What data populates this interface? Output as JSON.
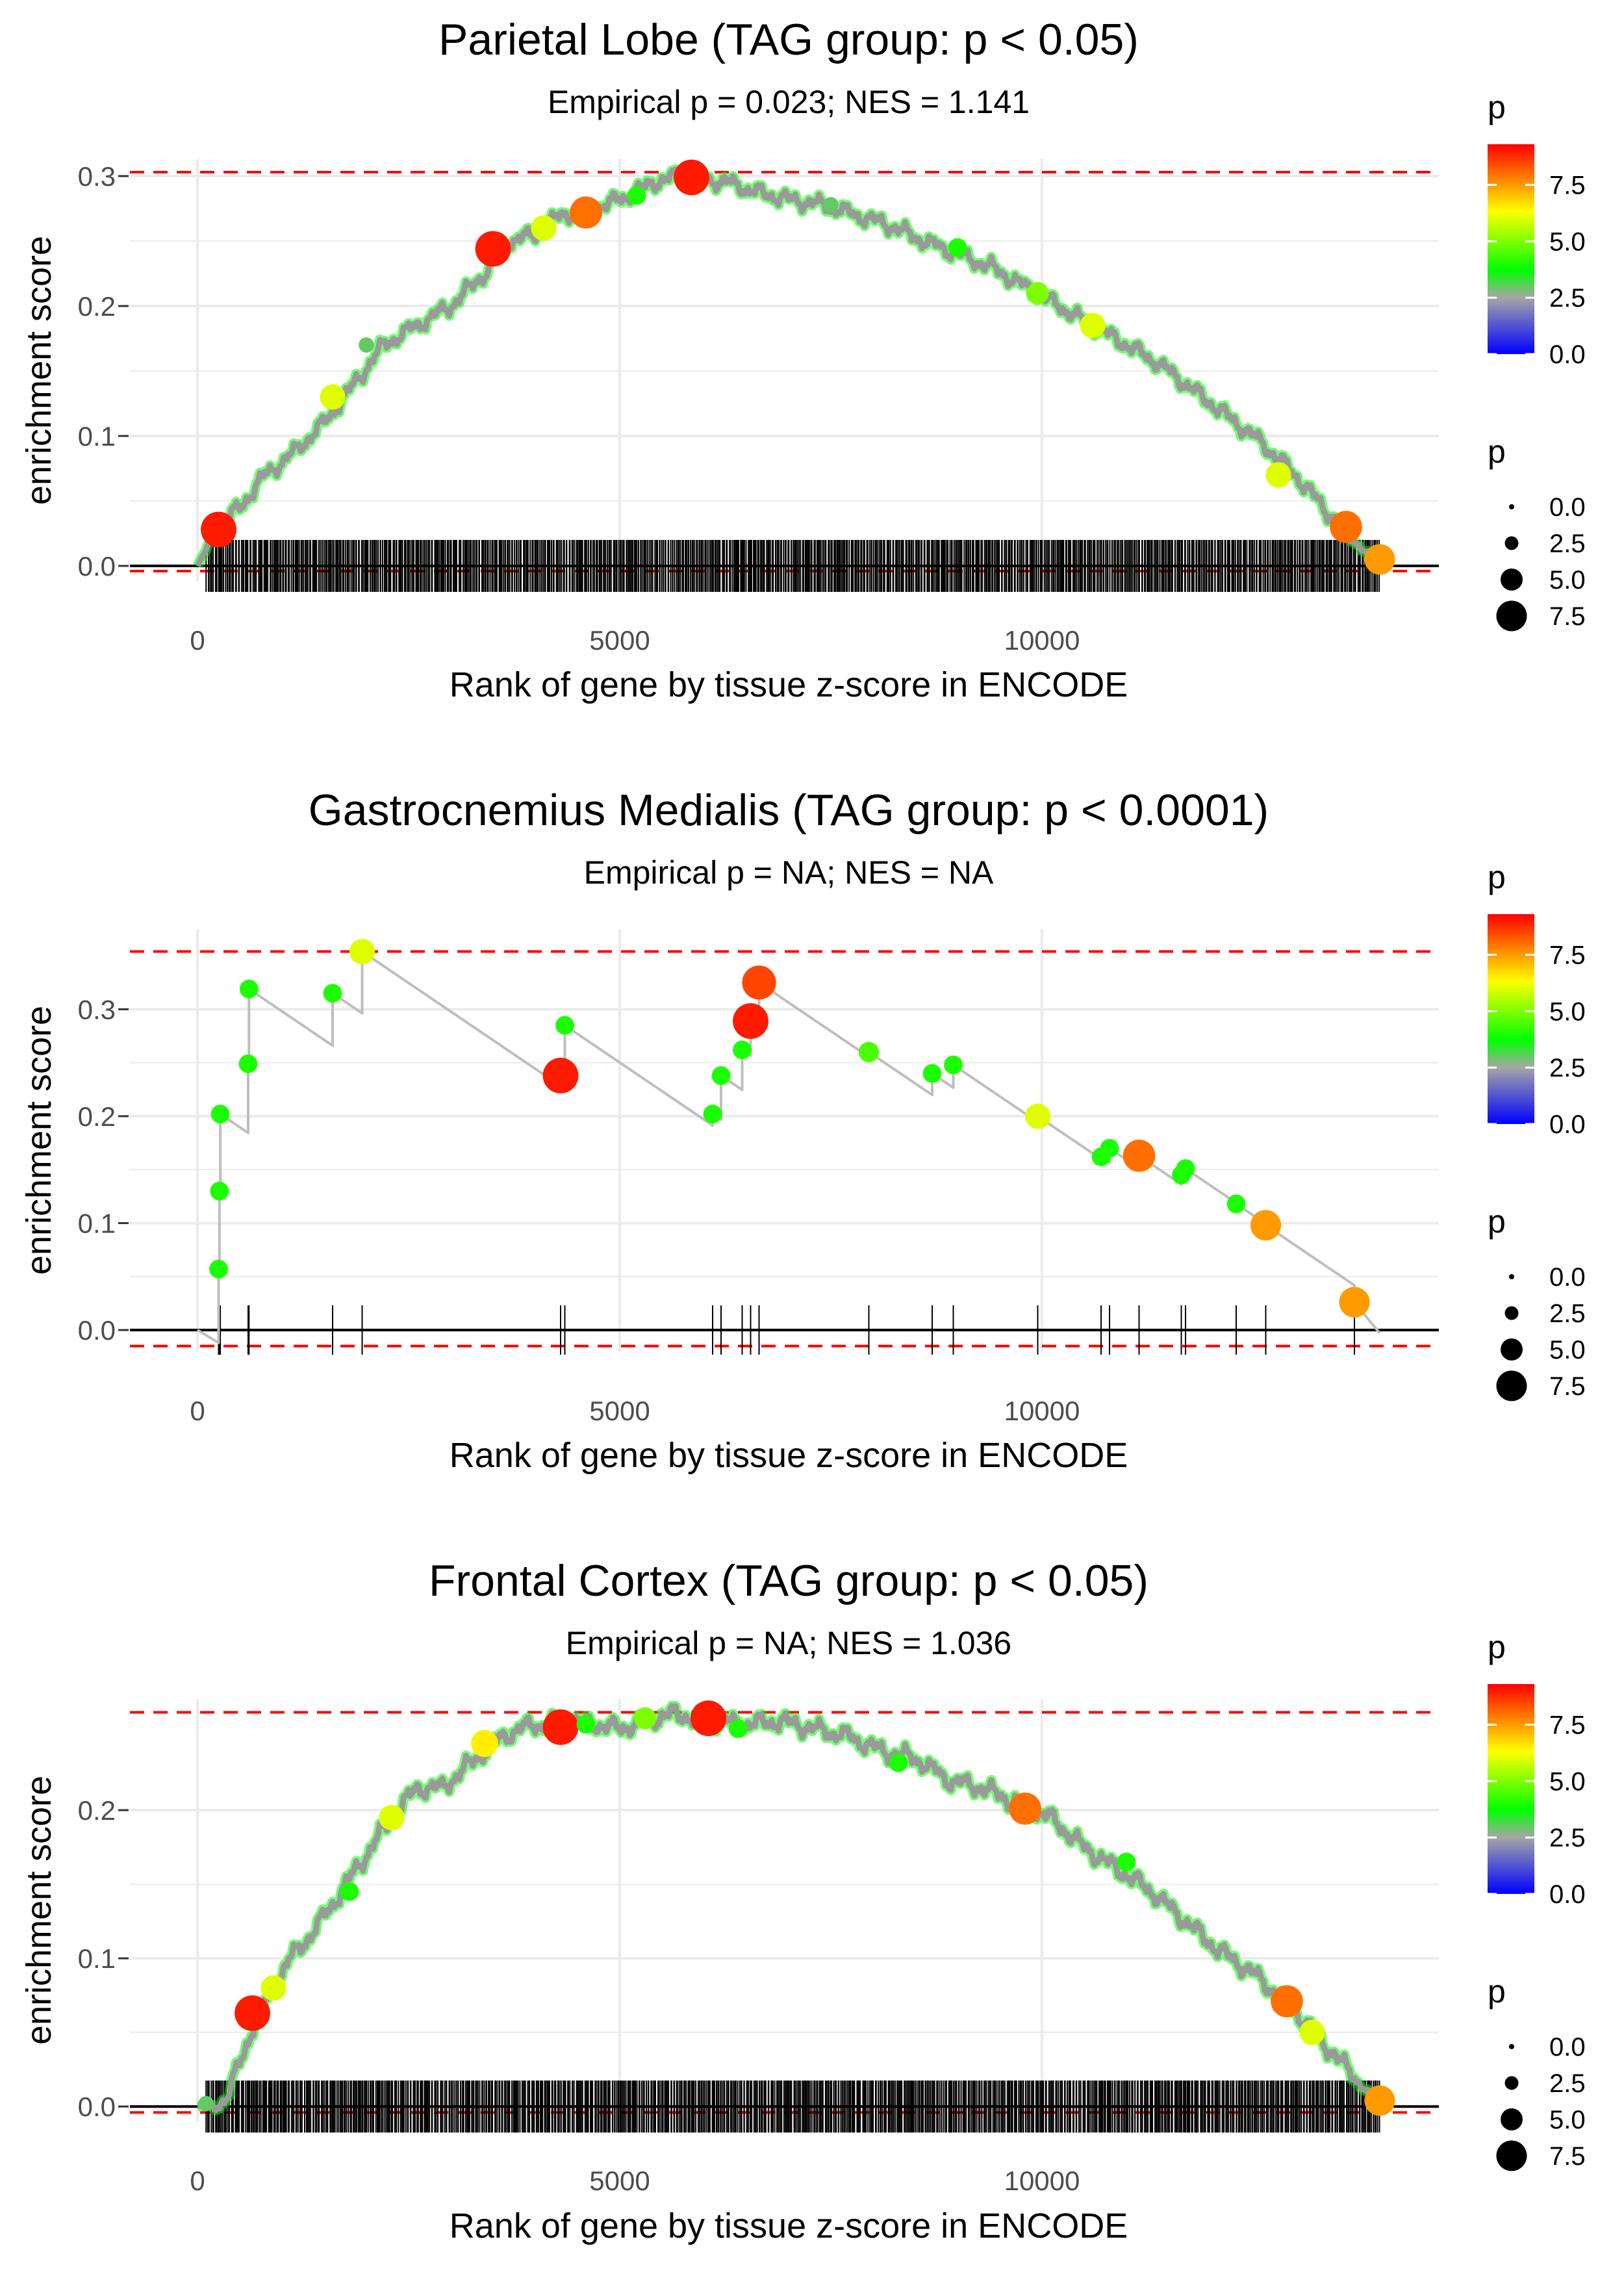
{
  "chart_data": [
    {
      "type": "line",
      "title": "Parietal Lobe (TAG group: p < 0.05)",
      "subtitle": "Empirical p = 0.023; NES = 1.141",
      "xlabel": "Rank of gene by tissue z-score in ENCODE",
      "ylabel": "enrichment score",
      "xlim": [
        -800,
        14700
      ],
      "ylim": [
        -0.012,
        0.313
      ],
      "xticks": [
        0,
        5000,
        10000
      ],
      "xtick_labels": [
        "0",
        "5000",
        "10000"
      ],
      "yticks": [
        0.0,
        0.1,
        0.2,
        0.3
      ],
      "ytick_labels": [
        "0.0",
        "0.1",
        "0.2",
        "0.3"
      ],
      "max_es": 0.303,
      "min_es": -0.004,
      "curve_style": "dense",
      "n_hits": 820,
      "x_end": 14000,
      "rank_range": [
        100,
        14000
      ],
      "curve": {
        "x": [
          0,
          250,
          500,
          800,
          1100,
          1500,
          1800,
          2200,
          2600,
          3000,
          3400,
          3700,
          4000,
          4300,
          4500,
          4800,
          5100,
          5400,
          5700,
          6000,
          6300,
          6600,
          7000,
          7400,
          7800,
          8200,
          8600,
          9000,
          9400,
          9800,
          10200,
          10600,
          11000,
          11400,
          11800,
          12200,
          12600,
          13000,
          13400,
          13700,
          14000
        ],
        "y": [
          0.0,
          0.03,
          0.045,
          0.07,
          0.085,
          0.11,
          0.135,
          0.17,
          0.185,
          0.2,
          0.225,
          0.25,
          0.255,
          0.27,
          0.272,
          0.277,
          0.285,
          0.295,
          0.3,
          0.297,
          0.295,
          0.288,
          0.282,
          0.278,
          0.27,
          0.262,
          0.25,
          0.24,
          0.23,
          0.215,
          0.2,
          0.185,
          0.17,
          0.155,
          0.135,
          0.115,
          0.095,
          0.07,
          0.04,
          0.02,
          0.0
        ]
      },
      "points": [
        {
          "x": 250,
          "y": 0.028,
          "p": 9.0
        },
        {
          "x": 1600,
          "y": 0.13,
          "p": 6.0
        },
        {
          "x": 2000,
          "y": 0.17,
          "p": 3.0
        },
        {
          "x": 3500,
          "y": 0.244,
          "p": 9.0
        },
        {
          "x": 4100,
          "y": 0.26,
          "p": 6.0
        },
        {
          "x": 4600,
          "y": 0.272,
          "p": 8.0
        },
        {
          "x": 5200,
          "y": 0.285,
          "p": 4.0
        },
        {
          "x": 5850,
          "y": 0.299,
          "p": 9.0
        },
        {
          "x": 7500,
          "y": 0.278,
          "p": 3.0
        },
        {
          "x": 9000,
          "y": 0.245,
          "p": 4.0
        },
        {
          "x": 9950,
          "y": 0.21,
          "p": 5.0
        },
        {
          "x": 10600,
          "y": 0.185,
          "p": 6.0
        },
        {
          "x": 12800,
          "y": 0.07,
          "p": 6.0
        },
        {
          "x": 13600,
          "y": 0.03,
          "p": 8.0
        },
        {
          "x": 14000,
          "y": 0.005,
          "p": 7.5
        }
      ]
    },
    {
      "type": "line",
      "title": "Gastrocnemius Medialis (TAG group: p < 0.0001)",
      "subtitle": "Empirical p = NA; NES = NA",
      "xlabel": "Rank of gene by tissue z-score in ENCODE",
      "ylabel": "enrichment score",
      "xlim": [
        -800,
        14700
      ],
      "ylim": [
        -0.02,
        0.375
      ],
      "xticks": [
        0,
        5000,
        10000
      ],
      "xtick_labels": [
        "0",
        "5000",
        "10000"
      ],
      "yticks": [
        0.0,
        0.1,
        0.2,
        0.3
      ],
      "ytick_labels": [
        "0.0",
        "0.1",
        "0.2",
        "0.3"
      ],
      "max_es": 0.354,
      "min_es": -0.015,
      "curve_style": "sawtooth",
      "x_end": 14000,
      "hits": [
        {
          "x": 250,
          "p": 4.0
        },
        {
          "x": 260,
          "p": 4.0
        },
        {
          "x": 270,
          "p": 4.0
        },
        {
          "x": 600,
          "p": 4.0
        },
        {
          "x": 610,
          "p": 4.0
        },
        {
          "x": 1600,
          "p": 4.0
        },
        {
          "x": 1950,
          "p": 6.0
        },
        {
          "x": 4300,
          "p": 9.0
        },
        {
          "x": 4350,
          "p": 4.0
        },
        {
          "x": 6100,
          "p": 4.0
        },
        {
          "x": 6200,
          "p": 4.0
        },
        {
          "x": 6450,
          "p": 4.0
        },
        {
          "x": 6550,
          "p": 9.0
        },
        {
          "x": 6650,
          "p": 8.5
        },
        {
          "x": 7950,
          "p": 4.5
        },
        {
          "x": 8700,
          "p": 4.0
        },
        {
          "x": 8950,
          "p": 4.0
        },
        {
          "x": 9950,
          "p": 6.0
        },
        {
          "x": 10700,
          "p": 4.0
        },
        {
          "x": 10800,
          "p": 4.0
        },
        {
          "x": 11150,
          "p": 8.0
        },
        {
          "x": 11650,
          "p": 4.0
        },
        {
          "x": 11700,
          "p": 4.0
        },
        {
          "x": 12300,
          "p": 4.0
        },
        {
          "x": 12650,
          "p": 7.5
        },
        {
          "x": 13700,
          "p": 7.5
        }
      ],
      "points": [
        {
          "x": 250,
          "y": 0.057,
          "p": 4.0
        },
        {
          "x": 260,
          "y": 0.13,
          "p": 4.0
        },
        {
          "x": 270,
          "y": 0.202,
          "p": 4.0
        },
        {
          "x": 600,
          "y": 0.249,
          "p": 4.0
        },
        {
          "x": 610,
          "y": 0.319,
          "p": 4.0
        },
        {
          "x": 1600,
          "y": 0.315,
          "p": 4.0
        },
        {
          "x": 1950,
          "y": 0.354,
          "p": 6.0
        },
        {
          "x": 4300,
          "y": 0.238,
          "p": 9.0
        },
        {
          "x": 4350,
          "y": 0.285,
          "p": 4.0
        },
        {
          "x": 6100,
          "y": 0.202,
          "p": 4.0
        },
        {
          "x": 6200,
          "y": 0.238,
          "p": 4.0
        },
        {
          "x": 6450,
          "y": 0.262,
          "p": 4.0
        },
        {
          "x": 6550,
          "y": 0.289,
          "p": 9.0
        },
        {
          "x": 6650,
          "y": 0.325,
          "p": 8.5
        },
        {
          "x": 7950,
          "y": 0.26,
          "p": 4.5
        },
        {
          "x": 8700,
          "y": 0.24,
          "p": 4.0
        },
        {
          "x": 8950,
          "y": 0.248,
          "p": 4.0
        },
        {
          "x": 9950,
          "y": 0.2,
          "p": 6.0
        },
        {
          "x": 10700,
          "y": 0.162,
          "p": 4.0
        },
        {
          "x": 10800,
          "y": 0.17,
          "p": 4.0
        },
        {
          "x": 11150,
          "y": 0.163,
          "p": 8.0
        },
        {
          "x": 11650,
          "y": 0.145,
          "p": 4.0
        },
        {
          "x": 11700,
          "y": 0.151,
          "p": 4.0
        },
        {
          "x": 12300,
          "y": 0.118,
          "p": 4.0
        },
        {
          "x": 12650,
          "y": 0.098,
          "p": 7.5
        },
        {
          "x": 13700,
          "y": 0.026,
          "p": 7.5
        }
      ]
    },
    {
      "type": "line",
      "title": "Frontal Cortex (TAG group: p < 0.05)",
      "subtitle": "Empirical p = NA; NES = 1.036",
      "xlabel": "Rank of gene by tissue z-score in ENCODE",
      "ylabel": "enrichment score",
      "xlim": [
        -800,
        14700
      ],
      "ylim": [
        -0.01,
        0.275
      ],
      "xticks": [
        0,
        5000,
        10000
      ],
      "xtick_labels": [
        "0",
        "5000",
        "10000"
      ],
      "yticks": [
        0.0,
        0.1,
        0.2
      ],
      "ytick_labels": [
        "0.0",
        "0.1",
        "0.2"
      ],
      "max_es": 0.266,
      "min_es": -0.004,
      "curve_style": "dense",
      "n_hits": 820,
      "x_end": 14000,
      "rank_range": [
        100,
        14000
      ],
      "curve": {
        "x": [
          0,
          200,
          350,
          500,
          700,
          900,
          1100,
          1400,
          1700,
          2000,
          2300,
          2600,
          2900,
          3200,
          3500,
          3800,
          4100,
          4400,
          4700,
          5000,
          5300,
          5600,
          5900,
          6200,
          6500,
          6900,
          7300,
          7700,
          8100,
          8500,
          8900,
          9300,
          9700,
          10100,
          10500,
          10900,
          11300,
          11700,
          12100,
          12500,
          12900,
          13300,
          13700,
          14000
        ],
        "y": [
          0.0,
          0.0,
          0.005,
          0.03,
          0.06,
          0.08,
          0.1,
          0.12,
          0.145,
          0.17,
          0.195,
          0.215,
          0.215,
          0.23,
          0.245,
          0.255,
          0.258,
          0.26,
          0.258,
          0.255,
          0.26,
          0.265,
          0.262,
          0.26,
          0.258,
          0.26,
          0.255,
          0.25,
          0.24,
          0.235,
          0.22,
          0.215,
          0.205,
          0.195,
          0.175,
          0.16,
          0.145,
          0.125,
          0.105,
          0.09,
          0.07,
          0.045,
          0.02,
          0.0
        ]
      },
      "points": [
        {
          "x": 100,
          "y": 0.002,
          "p": 3.0
        },
        {
          "x": 650,
          "y": 0.063,
          "p": 9.0
        },
        {
          "x": 900,
          "y": 0.08,
          "p": 6.0
        },
        {
          "x": 1800,
          "y": 0.145,
          "p": 4.0
        },
        {
          "x": 2300,
          "y": 0.195,
          "p": 6.0
        },
        {
          "x": 3400,
          "y": 0.245,
          "p": 6.5
        },
        {
          "x": 4300,
          "y": 0.256,
          "p": 9.0
        },
        {
          "x": 4600,
          "y": 0.258,
          "p": 4.0
        },
        {
          "x": 5300,
          "y": 0.262,
          "p": 5.0
        },
        {
          "x": 6050,
          "y": 0.262,
          "p": 9.0
        },
        {
          "x": 6400,
          "y": 0.255,
          "p": 4.0
        },
        {
          "x": 8300,
          "y": 0.232,
          "p": 4.0
        },
        {
          "x": 9800,
          "y": 0.201,
          "p": 8.0
        },
        {
          "x": 11000,
          "y": 0.165,
          "p": 4.0
        },
        {
          "x": 12900,
          "y": 0.071,
          "p": 8.0
        },
        {
          "x": 13200,
          "y": 0.05,
          "p": 6.0
        },
        {
          "x": 14000,
          "y": 0.004,
          "p": 7.5
        }
      ]
    }
  ],
  "legend": {
    "color_title": "p",
    "color_labels": [
      "7.5",
      "5.0",
      "2.5",
      "0.0"
    ],
    "color_values": [
      7.5,
      5.0,
      2.5,
      0.0
    ],
    "color_range": [
      0,
      9.3
    ],
    "size_title": "p",
    "size_labels": [
      "0.0",
      "2.5",
      "5.0",
      "7.5"
    ],
    "size_values": [
      0.0,
      2.5,
      5.0,
      7.5
    ]
  },
  "colors": {
    "gradient": [
      "#0000ff",
      "#a6a6a6",
      "#00ff00",
      "#ffff00",
      "#ff0000"
    ],
    "gradient_stops": [
      0.0,
      0.27,
      0.4,
      0.68,
      1.0
    ],
    "max_min_line": "#ff0000",
    "curve_line": "#bebebe",
    "grid": "#ebebeb",
    "rug": "#000000"
  }
}
